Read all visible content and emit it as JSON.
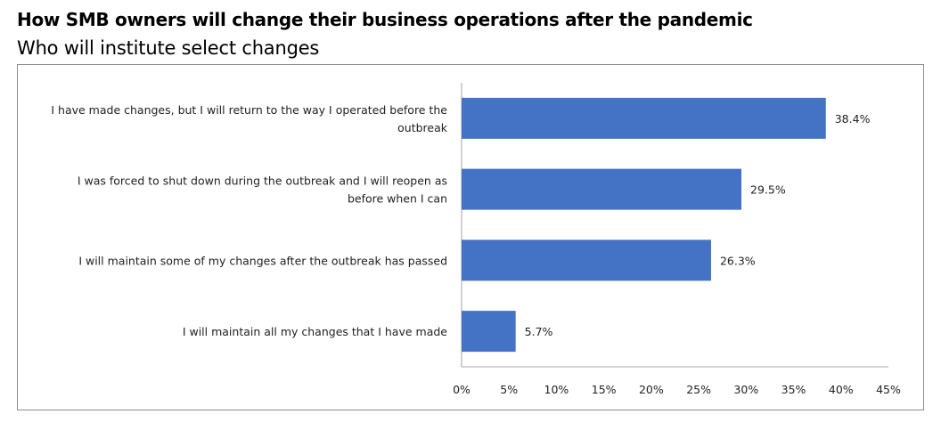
{
  "title": "How SMB owners will change their business operations after the pandemic",
  "subtitle": "Who will institute select changes",
  "chart_data": {
    "type": "bar",
    "orientation": "horizontal",
    "title": "How SMB owners will change their business operations after the pandemic",
    "subtitle": "Who will institute select changes",
    "categories": [
      [
        "I have made changes, but I will return to the way I operated before the",
        "outbreak"
      ],
      [
        "I was forced to shut down during the outbreak and I will reopen as",
        "before when I can"
      ],
      [
        "I will maintain some of my changes after the outbreak has passed"
      ],
      [
        "I will maintain all my changes that I have made"
      ]
    ],
    "values": [
      38.4,
      29.5,
      26.3,
      5.7
    ],
    "data_labels": [
      "38.4%",
      "29.5%",
      "26.3%",
      "5.7%"
    ],
    "xlim": [
      0,
      45
    ],
    "xticks": [
      0,
      5,
      10,
      15,
      20,
      25,
      30,
      35,
      40,
      45
    ],
    "xtick_labels": [
      "0%",
      "5%",
      "10%",
      "15%",
      "20%",
      "25%",
      "30%",
      "35%",
      "40%",
      "45%"
    ],
    "xlabel": "",
    "ylabel": "",
    "grid": false,
    "legend": "none",
    "bar_color": "#4472C4"
  }
}
